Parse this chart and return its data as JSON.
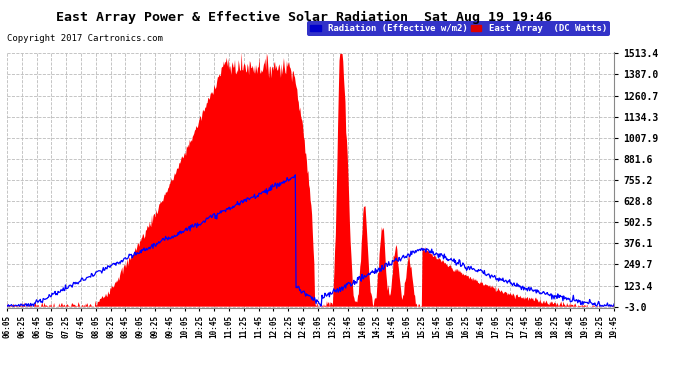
{
  "title": "East Array Power & Effective Solar Radiation  Sat Aug 19 19:46",
  "copyright": "Copyright 2017 Cartronics.com",
  "legend_radiation": "Radiation (Effective w/m2)",
  "legend_east": "East Array  (DC Watts)",
  "legend_radiation_color": "#0000cc",
  "legend_east_color": "#dd0000",
  "y_min": -3.0,
  "y_max": 1513.4,
  "y_ticks": [
    1513.4,
    1387.0,
    1260.7,
    1134.3,
    1007.9,
    881.6,
    755.2,
    628.8,
    502.5,
    376.1,
    249.7,
    123.4,
    -3.0
  ],
  "x_labels": [
    "06:05",
    "06:25",
    "06:45",
    "07:05",
    "07:25",
    "07:45",
    "08:05",
    "08:25",
    "08:45",
    "09:05",
    "09:25",
    "09:45",
    "10:05",
    "10:25",
    "10:45",
    "11:05",
    "11:25",
    "11:45",
    "12:05",
    "12:25",
    "12:45",
    "13:05",
    "13:25",
    "13:45",
    "14:05",
    "14:25",
    "14:45",
    "15:05",
    "15:25",
    "15:45",
    "16:05",
    "16:25",
    "16:45",
    "17:05",
    "17:25",
    "17:45",
    "18:05",
    "18:25",
    "18:45",
    "19:05",
    "19:25",
    "19:45"
  ],
  "background_color": "#ffffff",
  "grid_color": "#bbbbbb",
  "fill_color": "#ff0000",
  "line_color": "#0000ff"
}
